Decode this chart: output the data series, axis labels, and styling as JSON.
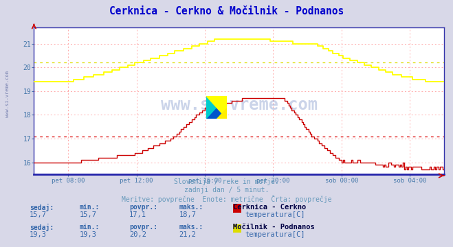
{
  "title": "Cerknica - Cerkno & Močilnik - Podnanos",
  "title_color": "#0000cc",
  "bg_color": "#d8d8e8",
  "plot_bg_color": "#ffffff",
  "grid_color": "#ffaaaa",
  "xlabel_ticks": [
    "pet 08:00",
    "pet 12:00",
    "pet 16:00",
    "pet 20:00",
    "sob 00:00",
    "sob 04:00"
  ],
  "xlim": [
    0,
    288
  ],
  "ylim": [
    15.5,
    21.7
  ],
  "yticks": [
    16,
    17,
    18,
    19,
    20,
    21
  ],
  "hline1_y": 17.1,
  "hline1_color": "#dd0000",
  "hline2_y": 20.2,
  "hline2_color": "#dddd00",
  "line1_color": "#cc0000",
  "line2_color": "#ffff00",
  "bottom_text1": "Slovenija / reke in morje.",
  "bottom_text2": "zadnji dan / 5 minut.",
  "bottom_text3": "Meritve: povprečne  Enote: metrične  Črta: povprečje",
  "text_color": "#6699bb",
  "label_color": "#3366aa",
  "station1_name": "Cerknica - Cerkno",
  "station1_sedaj": "15,7",
  "station1_min": "15,7",
  "station1_povpr": "17,1",
  "station1_maks": "18,7",
  "station1_legend_color": "#cc0000",
  "station1_unit": "temperatura[C]",
  "station2_name": "Močilnik - Podnanos",
  "station2_sedaj": "19,3",
  "station2_min": "19,3",
  "station2_povpr": "20,2",
  "station2_maks": "21,2",
  "station2_legend_color": "#dddd00",
  "station2_unit": "temperatura[C]",
  "watermark_color": "#3355aa",
  "watermark_alpha": 0.25,
  "axis_color": "#0000bb",
  "tick_color": "#4477aa",
  "spine_color": "#3333aa"
}
